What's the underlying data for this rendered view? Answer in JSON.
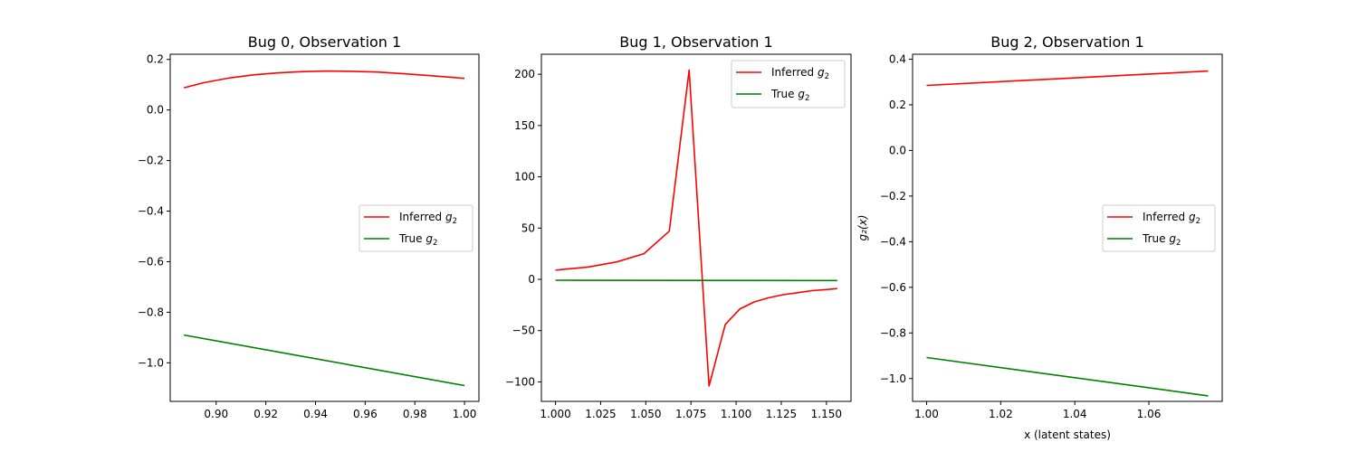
{
  "chart_data": [
    {
      "type": "line",
      "title": "Bug 0, Observation 1",
      "xlabel": "",
      "ylabel": "",
      "xlim": [
        0.8815,
        1.0058
      ],
      "ylim": [
        -1.1525,
        0.2205
      ],
      "xticks": [
        0.9,
        0.92,
        0.94,
        0.96,
        0.98,
        1.0
      ],
      "xtick_labels": [
        "0.90",
        "0.92",
        "0.94",
        "0.96",
        "0.98",
        "1.00"
      ],
      "yticks": [
        0.2,
        0.0,
        -0.2,
        -0.4,
        -0.6,
        -0.8,
        -1.0
      ],
      "ytick_labels": [
        "0.2",
        "0.0",
        "−0.2",
        "−0.4",
        "−0.6",
        "−0.8",
        "−1.0"
      ],
      "legend": "center-right",
      "grid": false,
      "series": [
        {
          "name": "Inferred",
          "sub": "2",
          "color": "#ff0000",
          "points": [
            [
              0.887,
              0.088
            ],
            [
              0.895,
              0.108
            ],
            [
              0.905,
              0.126
            ],
            [
              0.915,
              0.139
            ],
            [
              0.925,
              0.147
            ],
            [
              0.935,
              0.152
            ],
            [
              0.945,
              0.154
            ],
            [
              0.955,
              0.153
            ],
            [
              0.965,
              0.15
            ],
            [
              0.975,
              0.144
            ],
            [
              0.985,
              0.137
            ],
            [
              0.995,
              0.129
            ],
            [
              1.0,
              0.125
            ]
          ]
        },
        {
          "name": "True",
          "sub": "2",
          "color": "#008000",
          "points": [
            [
              0.887,
              -0.89
            ],
            [
              1.0,
              -1.09
            ]
          ]
        }
      ]
    },
    {
      "type": "line",
      "title": "Bug 1, Observation 1",
      "xlabel": "",
      "ylabel": "",
      "xlim": [
        0.9922,
        1.1636
      ],
      "ylim": [
        -119.0,
        219.5
      ],
      "xticks": [
        1.0,
        1.025,
        1.05,
        1.075,
        1.1,
        1.125,
        1.15
      ],
      "xtick_labels": [
        "1.000",
        "1.025",
        "1.050",
        "1.075",
        "1.100",
        "1.125",
        "1.150"
      ],
      "yticks": [
        200,
        150,
        100,
        50,
        0,
        -50,
        -100
      ],
      "ytick_labels": [
        "200",
        "150",
        "100",
        "50",
        "0",
        "−50",
        "−100"
      ],
      "legend": "top-right",
      "grid": false,
      "series": [
        {
          "name": "Inferred",
          "sub": "2",
          "color": "#ff0000",
          "points": [
            [
              1.0,
              9
            ],
            [
              1.018,
              12
            ],
            [
              1.034,
              17
            ],
            [
              1.049,
              25
            ],
            [
              1.063,
              47
            ],
            [
              1.074,
              204
            ],
            [
              1.085,
              -104
            ],
            [
              1.094,
              -44
            ],
            [
              1.102,
              -29
            ],
            [
              1.11,
              -22
            ],
            [
              1.118,
              -18
            ],
            [
              1.126,
              -15
            ],
            [
              1.134,
              -13
            ],
            [
              1.142,
              -11
            ],
            [
              1.15,
              -10
            ],
            [
              1.156,
              -9
            ]
          ]
        },
        {
          "name": "True",
          "sub": "2",
          "color": "#008000",
          "points": [
            [
              1.0,
              -0.9
            ],
            [
              1.156,
              -1.1
            ]
          ]
        }
      ]
    },
    {
      "type": "line",
      "title": "Bug 2, Observation 1",
      "xlabel": "x (latent states)",
      "ylabel": "g₂(x)",
      "xlim": [
        0.9962,
        1.0798
      ],
      "ylim": [
        -1.1,
        0.4217
      ],
      "xticks": [
        1.0,
        1.02,
        1.04,
        1.06
      ],
      "xtick_labels": [
        "1.00",
        "1.02",
        "1.04",
        "1.06"
      ],
      "yticks": [
        0.4,
        0.2,
        0.0,
        -0.2,
        -0.4,
        -0.6,
        -0.8,
        -1.0
      ],
      "ytick_labels": [
        "0.4",
        "0.2",
        "0.0",
        "−0.2",
        "−0.4",
        "−0.6",
        "−0.8",
        "−1.0"
      ],
      "legend": "center-right",
      "grid": false,
      "series": [
        {
          "name": "Inferred",
          "sub": "2",
          "color": "#ff0000",
          "points": [
            [
              1.0,
              0.285
            ],
            [
              1.076,
              0.348
            ]
          ]
        },
        {
          "name": "True",
          "sub": "2",
          "color": "#008000",
          "points": [
            [
              1.0,
              -0.908
            ],
            [
              1.076,
              -1.076
            ]
          ]
        }
      ]
    }
  ]
}
